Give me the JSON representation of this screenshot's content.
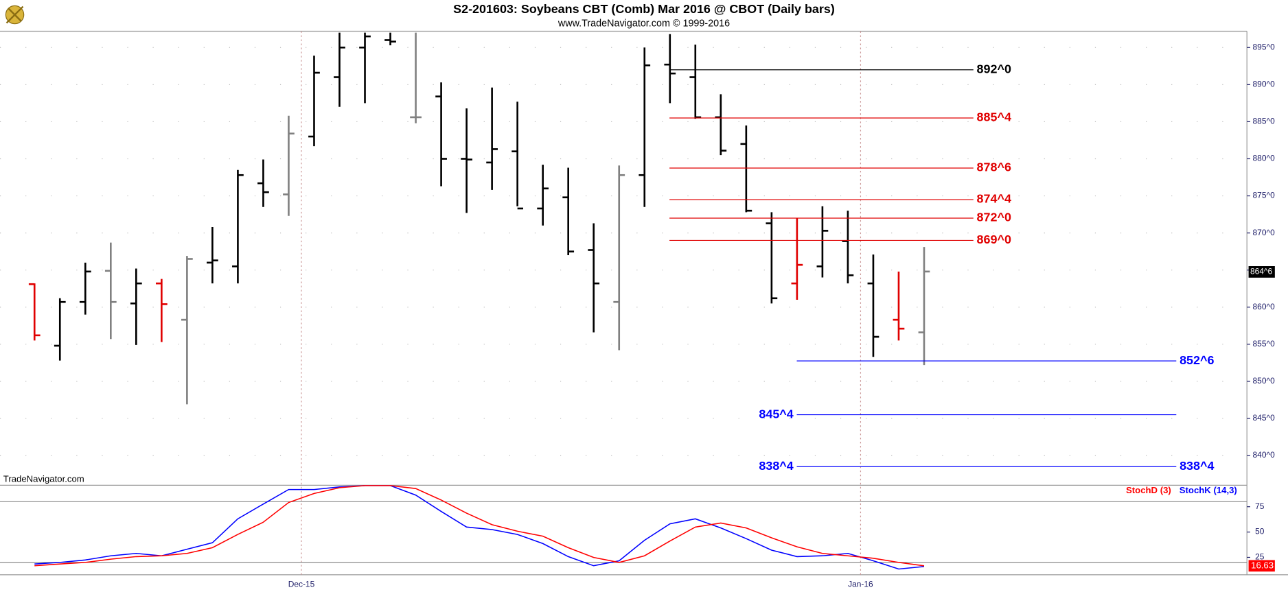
{
  "chart_data": [
    {
      "type": "ohlc",
      "title": "S2-201603:  Soybeans CBT (Comb) Mar 2016 @ CBOT  (Daily bars)",
      "subtitle": "www.TradeNavigator.com © 1999-2016",
      "watermark": "TradeNavigator.com",
      "categories": [
        null,
        null,
        null,
        null,
        null,
        null,
        null,
        null,
        null,
        null,
        null,
        "Dec-15",
        null,
        null,
        null,
        null,
        null,
        null,
        null,
        null,
        null,
        null,
        null,
        null,
        null,
        null,
        null,
        null,
        null,
        null,
        null,
        null,
        null,
        "Jan-16",
        null,
        null
      ],
      "open": [
        863.1,
        854.8,
        860.7,
        864.9,
        860.5,
        863.2,
        858.3,
        866,
        865.5,
        876.7,
        875.2,
        883,
        891,
        895,
        896,
        885.6,
        888.4,
        880,
        879.5,
        881,
        873.3,
        874.8,
        867.7,
        860.7,
        877.8,
        892.7,
        891,
        885.6,
        882,
        871.3,
        863.2,
        865.5,
        868.9,
        863.2,
        858.3,
        856.6
      ],
      "high": [
        863.2,
        861.2,
        866,
        868.7,
        865.2,
        863.8,
        866.9,
        870.8,
        878.5,
        879.9,
        885.8,
        893.9,
        897,
        897,
        897,
        897,
        890.3,
        886.8,
        889.6,
        887.7,
        879.2,
        878.8,
        871.3,
        879.1,
        895,
        896.8,
        895.4,
        888.7,
        884.5,
        872.8,
        872,
        873.6,
        873,
        867.1,
        864.8,
        868.1
      ],
      "low": [
        855.5,
        852.8,
        859,
        855.7,
        854.9,
        855.3,
        846.9,
        863.2,
        863.2,
        873.5,
        872.3,
        881.7,
        887,
        887.5,
        895.3,
        884.8,
        876.3,
        872.7,
        875.8,
        873.6,
        871,
        867,
        856.6,
        854.2,
        873.5,
        887.5,
        885.4,
        880.5,
        872.8,
        860.5,
        861,
        864,
        863.2,
        853.3,
        855.5,
        852.2
      ],
      "close": [
        856.2,
        860.7,
        864.8,
        860.7,
        863.2,
        860.4,
        866.5,
        866.3,
        877.8,
        875.5,
        883.4,
        891.6,
        895,
        896.5,
        895.8,
        885.6,
        880,
        879.9,
        881.3,
        873.3,
        876,
        867.5,
        863.2,
        877.8,
        892.6,
        891.5,
        885.6,
        881.1,
        873,
        861.2,
        865.7,
        870.3,
        864.3,
        856,
        857.1,
        864.8
      ],
      "colors": [
        "#e00000",
        "#000000",
        "#000000",
        "#808080",
        "#000000",
        "#e00000",
        "#808080",
        "#000000",
        "#000000",
        "#000000",
        "#808080",
        "#000000",
        "#000000",
        "#000000",
        "#000000",
        "#808080",
        "#000000",
        "#000000",
        "#000000",
        "#000000",
        "#000000",
        "#000000",
        "#000000",
        "#808080",
        "#000000",
        "#000000",
        "#000000",
        "#000000",
        "#000000",
        "#000000",
        "#e00000",
        "#000000",
        "#000000",
        "#000000",
        "#e00000",
        "#808080"
      ],
      "ylim": [
        836.1,
        897.2
      ],
      "yticks": [
        {
          "value": 840,
          "label": "840^0"
        },
        {
          "value": 845,
          "label": "845^0"
        },
        {
          "value": 850,
          "label": "850^0"
        },
        {
          "value": 855,
          "label": "855^0"
        },
        {
          "value": 860,
          "label": "860^0"
        },
        {
          "value": 865,
          "label": "865^0"
        },
        {
          "value": 870,
          "label": "870^0"
        },
        {
          "value": 875,
          "label": "875^0"
        },
        {
          "value": 880,
          "label": "880^0"
        },
        {
          "value": 885,
          "label": "885^0"
        },
        {
          "value": 890,
          "label": "890^0"
        },
        {
          "value": 895,
          "label": "895^0"
        }
      ],
      "levels": [
        {
          "value": 892,
          "label": "892^0",
          "color": "#000000",
          "label_side": "right"
        },
        {
          "value": 885.5,
          "label": "885^4",
          "color": "#e00000",
          "label_side": "right"
        },
        {
          "value": 878.75,
          "label": "878^6",
          "color": "#e00000",
          "label_side": "right"
        },
        {
          "value": 874.5,
          "label": "874^4",
          "color": "#e00000",
          "label_side": "right"
        },
        {
          "value": 872,
          "label": "872^0",
          "color": "#e00000",
          "label_side": "right"
        },
        {
          "value": 869,
          "label": "869^0",
          "color": "#e00000",
          "label_side": "right"
        },
        {
          "value": 852.75,
          "label": "852^6",
          "color": "#0000ff",
          "label_side": "right"
        },
        {
          "value": 845.5,
          "label": "845^4",
          "color": "#0000ff",
          "label_side": "left"
        },
        {
          "value": 838.5,
          "label": "838^4",
          "color": "#0000ff",
          "label_side": "both"
        }
      ],
      "last": {
        "value": 864.75,
        "label": "864^6"
      },
      "grid": true
    },
    {
      "type": "line",
      "series": [
        {
          "name": "StochD (3)",
          "color": "#ff0000",
          "values": [
            16.7,
            18.4,
            20,
            23.2,
            25.7,
            26.5,
            28.9,
            34.6,
            47.6,
            59.7,
            79.2,
            88.1,
            93.8,
            95.9,
            95.9,
            93,
            81.6,
            68.6,
            57.3,
            50.8,
            45.9,
            34.6,
            24.9,
            20,
            26.5,
            41.1,
            54.9,
            58.9,
            54,
            44.3,
            35.4,
            28.9,
            26.5,
            24.1,
            20,
            16.63
          ]
        },
        {
          "name": "StochK (14,3)",
          "color": "#0000ff",
          "values": [
            18.4,
            20,
            22.4,
            26.5,
            28.9,
            26.5,
            33,
            39.4,
            63,
            77.6,
            92,
            92,
            94.6,
            95.9,
            95.9,
            86.5,
            70.3,
            54.9,
            52.4,
            47.6,
            38.6,
            25.7,
            16.7,
            21.6,
            41.9,
            58.1,
            63,
            54,
            43.5,
            32.1,
            25.7,
            26.5,
            28.9,
            21.6,
            13.5,
            15.9
          ]
        }
      ],
      "ylim": [
        7.8,
        95.4
      ],
      "yticks": [
        25,
        50,
        75
      ],
      "levels": [
        20,
        80
      ]
    }
  ]
}
